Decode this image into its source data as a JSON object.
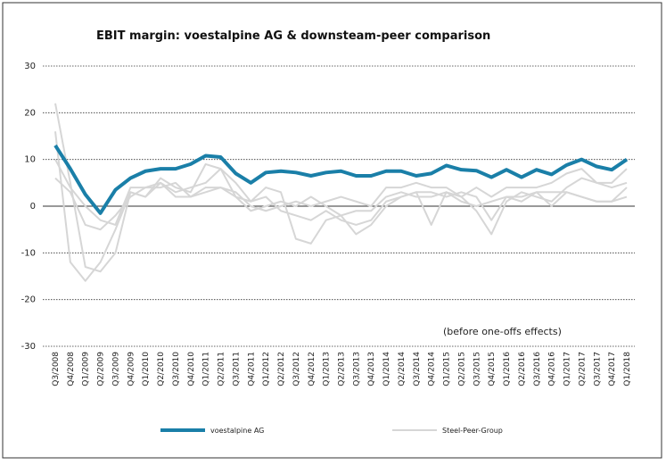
{
  "chart_data": {
    "type": "line",
    "title": "EBIT margin: voestalpine AG & downsteam-peer comparison",
    "annotation": "(before one-offs effects)",
    "categories": [
      "Q3/2008",
      "Q4/2008",
      "Q1/2009",
      "Q2/2009",
      "Q3/2009",
      "Q4/2009",
      "Q1/2010",
      "Q2/2010",
      "Q3/2010",
      "Q4/2010",
      "Q1/2011",
      "Q2/2011",
      "Q3/2011",
      "Q4/2011",
      "Q1/2012",
      "Q2/2012",
      "Q3/2012",
      "Q4/2012",
      "Q1/2013",
      "Q2/2013",
      "Q3/2013",
      "Q4/2013",
      "Q1/2014",
      "Q2/2014",
      "Q3/2014",
      "Q4/2014",
      "Q1/2015",
      "Q2/2015",
      "Q3/2015",
      "Q4/2015",
      "Q1/2016",
      "Q2/2016",
      "Q3/2016",
      "Q4/2016",
      "Q1/2017",
      "Q2/2017",
      "Q3/2017",
      "Q4/2017",
      "Q1/2018"
    ],
    "series": [
      {
        "name": "voestalpine AG",
        "color": "#1a7fa8",
        "values": [
          13,
          8,
          2.5,
          -1.5,
          3.5,
          6,
          7.5,
          8,
          8,
          9,
          10.8,
          10.5,
          7,
          5,
          7.2,
          7.5,
          7.2,
          6.5,
          7.2,
          7.5,
          6.5,
          6.5,
          7.5,
          7.5,
          6.5,
          7,
          8.7,
          7.8,
          7.6,
          6.2,
          7.8,
          6.2,
          7.8,
          6.8,
          8.8,
          10,
          8.5,
          7.8,
          10
        ]
      },
      {
        "name": "Steel-Peer-Group",
        "color": "#d6d6d6",
        "values": [
          [
            22,
            5,
            -13,
            -14,
            -10,
            3,
            2,
            6,
            4,
            3,
            9,
            8,
            2,
            1,
            4,
            3,
            -7,
            -8,
            -3,
            -2,
            -6,
            -4,
            0,
            2,
            3,
            -4,
            3,
            2,
            -1,
            -6,
            1,
            3,
            2,
            1,
            4,
            6,
            5,
            4,
            5
          ],
          [
            16,
            -12,
            -16,
            -12,
            -5,
            3,
            2,
            5,
            2,
            2,
            4,
            4,
            2,
            -1,
            0,
            1,
            0,
            2,
            0,
            -2,
            -1,
            -1,
            2,
            3,
            2,
            2,
            3,
            1,
            0,
            1,
            2,
            2,
            3,
            3,
            3,
            2,
            1,
            1,
            2
          ],
          [
            6,
            3,
            -4,
            -5,
            -2,
            2,
            4,
            5,
            3,
            4,
            5,
            8,
            5,
            1,
            2,
            -1,
            -2,
            -3,
            -1,
            -3,
            -4,
            -3,
            1,
            2,
            3,
            3,
            2,
            3,
            2,
            -3,
            2,
            1,
            3,
            0,
            3,
            2,
            1,
            1,
            4
          ],
          [
            10,
            4,
            0,
            -3,
            -4,
            4,
            4,
            4,
            5,
            2,
            3,
            4,
            3,
            0,
            -1,
            0,
            1,
            0,
            1,
            2,
            1,
            0,
            4,
            4,
            5,
            4,
            4,
            2,
            4,
            2,
            4,
            4,
            4,
            5,
            7,
            8,
            5,
            5,
            8
          ]
        ]
      }
    ],
    "ylim": [
      -30,
      30
    ],
    "yticks": [
      -30,
      -20,
      -10,
      0,
      10,
      20,
      30
    ],
    "grid": true
  }
}
